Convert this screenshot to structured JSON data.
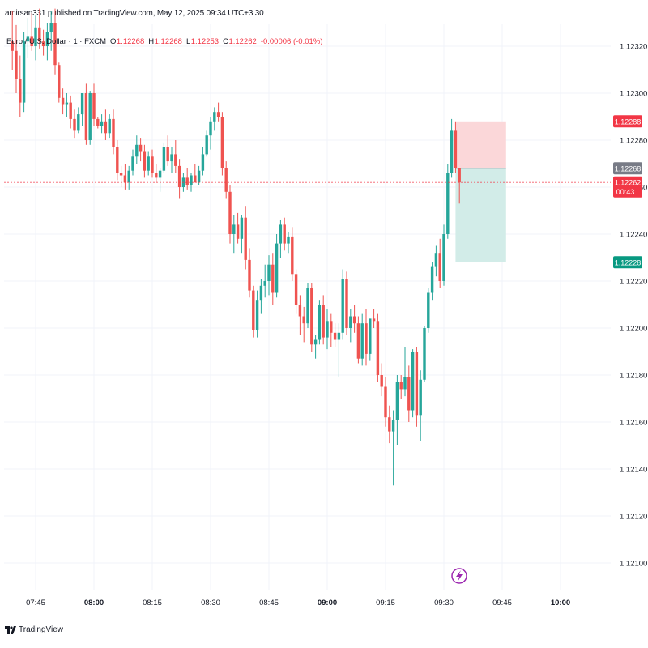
{
  "header": {
    "publisher": "amirsan331 published on TradingView.com, May 12, 2025 09:34 UTC+3:30"
  },
  "symbol": {
    "name": "Euro / U.S. Dollar · 1 · FXCM",
    "o_label": "O",
    "o_value": "1.12268",
    "h_label": "H",
    "h_value": "1.12268",
    "l_label": "L",
    "l_value": "1.12253",
    "c_label": "C",
    "c_value": "1.12262",
    "change": "-0.00006 (-0.01%)"
  },
  "footer": {
    "brand": "TradingView",
    "logo_icon": "tradingview-logo-icon"
  },
  "colors": {
    "up": "#26a69a",
    "down": "#ef5350",
    "grid": "#f0f3fa",
    "stop_zone": "#fbd7d9",
    "target_zone": "#d2ece8",
    "last_price": "#f23645",
    "target_badge": "#089981",
    "entry_badge": "#787b86"
  },
  "chart_data": {
    "type": "candlestick",
    "y_axis": {
      "range": [
        1.12092,
        1.12331
      ],
      "ticks": [
        "1.12320",
        "1.12300",
        "1.12280",
        "1.12260",
        "1.12240",
        "1.12220",
        "1.12200",
        "1.12180",
        "1.12160",
        "1.12140",
        "1.12120",
        "1.12100"
      ]
    },
    "x_axis": {
      "ticks": [
        "07:45",
        "08:00",
        "08:15",
        "08:30",
        "08:45",
        "09:00",
        "09:15",
        "09:30",
        "09:45",
        "10:00"
      ],
      "bold_ticks": [
        "08:00",
        "09:00",
        "10:00"
      ]
    },
    "grid": true,
    "candles": [
      {
        "t": "07:39",
        "o": 1.12322,
        "h": 1.12335,
        "l": 1.1231,
        "c": 1.12318
      },
      {
        "t": "07:40",
        "o": 1.12318,
        "h": 1.12329,
        "l": 1.123,
        "c": 1.12306
      },
      {
        "t": "07:41",
        "o": 1.12306,
        "h": 1.12316,
        "l": 1.1229,
        "c": 1.12296
      },
      {
        "t": "07:42",
        "o": 1.12296,
        "h": 1.12326,
        "l": 1.12292,
        "c": 1.12322
      },
      {
        "t": "07:43",
        "o": 1.12322,
        "h": 1.12332,
        "l": 1.12315,
        "c": 1.12324
      },
      {
        "t": "07:44",
        "o": 1.12324,
        "h": 1.12334,
        "l": 1.12318,
        "c": 1.1232
      },
      {
        "t": "07:45",
        "o": 1.1232,
        "h": 1.12333,
        "l": 1.12314,
        "c": 1.12328
      },
      {
        "t": "07:46",
        "o": 1.12328,
        "h": 1.12336,
        "l": 1.12319,
        "c": 1.12322
      },
      {
        "t": "07:47",
        "o": 1.12322,
        "h": 1.12327,
        "l": 1.12316,
        "c": 1.1232
      },
      {
        "t": "07:48",
        "o": 1.1232,
        "h": 1.1233,
        "l": 1.12314,
        "c": 1.12326
      },
      {
        "t": "07:49",
        "o": 1.12326,
        "h": 1.12335,
        "l": 1.12318,
        "c": 1.1233
      },
      {
        "t": "07:50",
        "o": 1.1233,
        "h": 1.12336,
        "l": 1.12308,
        "c": 1.12312
      },
      {
        "t": "07:51",
        "o": 1.12312,
        "h": 1.12313,
        "l": 1.12296,
        "c": 1.12298
      },
      {
        "t": "07:52",
        "o": 1.12298,
        "h": 1.12302,
        "l": 1.12291,
        "c": 1.12295
      },
      {
        "t": "07:53",
        "o": 1.12295,
        "h": 1.123,
        "l": 1.1229,
        "c": 1.12296
      },
      {
        "t": "07:54",
        "o": 1.12296,
        "h": 1.12299,
        "l": 1.12285,
        "c": 1.12289
      },
      {
        "t": "07:55",
        "o": 1.12289,
        "h": 1.12293,
        "l": 1.12281,
        "c": 1.12284
      },
      {
        "t": "07:56",
        "o": 1.12284,
        "h": 1.12294,
        "l": 1.12283,
        "c": 1.12291
      },
      {
        "t": "07:57",
        "o": 1.12291,
        "h": 1.123,
        "l": 1.12286,
        "c": 1.123
      },
      {
        "t": "07:58",
        "o": 1.123,
        "h": 1.12304,
        "l": 1.12278,
        "c": 1.1228
      },
      {
        "t": "07:59",
        "o": 1.1228,
        "h": 1.12301,
        "l": 1.12278,
        "c": 1.123
      },
      {
        "t": "08:00",
        "o": 1.123,
        "h": 1.12304,
        "l": 1.12286,
        "c": 1.12289
      },
      {
        "t": "08:01",
        "o": 1.12289,
        "h": 1.1229,
        "l": 1.12285,
        "c": 1.12286
      },
      {
        "t": "08:02",
        "o": 1.12286,
        "h": 1.12291,
        "l": 1.12283,
        "c": 1.12288
      },
      {
        "t": "08:03",
        "o": 1.12288,
        "h": 1.12293,
        "l": 1.1228,
        "c": 1.12283
      },
      {
        "t": "08:04",
        "o": 1.12283,
        "h": 1.12291,
        "l": 1.12281,
        "c": 1.12289
      },
      {
        "t": "08:05",
        "o": 1.12289,
        "h": 1.12293,
        "l": 1.12274,
        "c": 1.12277
      },
      {
        "t": "08:06",
        "o": 1.12277,
        "h": 1.1228,
        "l": 1.12263,
        "c": 1.12266
      },
      {
        "t": "08:07",
        "o": 1.12266,
        "h": 1.12269,
        "l": 1.1226,
        "c": 1.12265
      },
      {
        "t": "08:08",
        "o": 1.12265,
        "h": 1.1227,
        "l": 1.12259,
        "c": 1.12262
      },
      {
        "t": "08:09",
        "o": 1.12262,
        "h": 1.12269,
        "l": 1.12259,
        "c": 1.12267
      },
      {
        "t": "08:10",
        "o": 1.12267,
        "h": 1.12276,
        "l": 1.12265,
        "c": 1.12273
      },
      {
        "t": "08:11",
        "o": 1.12273,
        "h": 1.12282,
        "l": 1.1227,
        "c": 1.12278
      },
      {
        "t": "08:12",
        "o": 1.12278,
        "h": 1.12281,
        "l": 1.12271,
        "c": 1.12275
      },
      {
        "t": "08:13",
        "o": 1.12275,
        "h": 1.12278,
        "l": 1.12264,
        "c": 1.12267
      },
      {
        "t": "08:14",
        "o": 1.12267,
        "h": 1.12275,
        "l": 1.12265,
        "c": 1.12273
      },
      {
        "t": "08:15",
        "o": 1.12273,
        "h": 1.12276,
        "l": 1.12264,
        "c": 1.12266
      },
      {
        "t": "08:16",
        "o": 1.12266,
        "h": 1.1227,
        "l": 1.12262,
        "c": 1.12264
      },
      {
        "t": "08:17",
        "o": 1.12264,
        "h": 1.12268,
        "l": 1.12258,
        "c": 1.12267
      },
      {
        "t": "08:18",
        "o": 1.12267,
        "h": 1.12279,
        "l": 1.12266,
        "c": 1.12277
      },
      {
        "t": "08:19",
        "o": 1.12277,
        "h": 1.12282,
        "l": 1.12269,
        "c": 1.12271
      },
      {
        "t": "08:20",
        "o": 1.12271,
        "h": 1.12277,
        "l": 1.12266,
        "c": 1.12274
      },
      {
        "t": "08:21",
        "o": 1.12274,
        "h": 1.1228,
        "l": 1.12266,
        "c": 1.12269
      },
      {
        "t": "08:22",
        "o": 1.12269,
        "h": 1.12272,
        "l": 1.12255,
        "c": 1.1226
      },
      {
        "t": "08:23",
        "o": 1.1226,
        "h": 1.12266,
        "l": 1.12258,
        "c": 1.12264
      },
      {
        "t": "08:24",
        "o": 1.12264,
        "h": 1.12268,
        "l": 1.12259,
        "c": 1.12261
      },
      {
        "t": "08:25",
        "o": 1.12261,
        "h": 1.12266,
        "l": 1.12258,
        "c": 1.12265
      },
      {
        "t": "08:26",
        "o": 1.12265,
        "h": 1.1227,
        "l": 1.12262,
        "c": 1.12262
      },
      {
        "t": "08:27",
        "o": 1.12262,
        "h": 1.12269,
        "l": 1.12261,
        "c": 1.12267
      },
      {
        "t": "08:28",
        "o": 1.12267,
        "h": 1.12277,
        "l": 1.12265,
        "c": 1.12274
      },
      {
        "t": "08:29",
        "o": 1.12274,
        "h": 1.12284,
        "l": 1.12273,
        "c": 1.12282
      },
      {
        "t": "08:30",
        "o": 1.12282,
        "h": 1.1229,
        "l": 1.12276,
        "c": 1.12288
      },
      {
        "t": "08:31",
        "o": 1.12288,
        "h": 1.12294,
        "l": 1.12284,
        "c": 1.12292
      },
      {
        "t": "08:32",
        "o": 1.12292,
        "h": 1.12296,
        "l": 1.12288,
        "c": 1.1229
      },
      {
        "t": "08:33",
        "o": 1.1229,
        "h": 1.12292,
        "l": 1.12265,
        "c": 1.12268
      },
      {
        "t": "08:34",
        "o": 1.12268,
        "h": 1.12271,
        "l": 1.12255,
        "c": 1.12258
      },
      {
        "t": "08:35",
        "o": 1.12258,
        "h": 1.12261,
        "l": 1.12236,
        "c": 1.1224
      },
      {
        "t": "08:36",
        "o": 1.1224,
        "h": 1.12248,
        "l": 1.12232,
        "c": 1.12244
      },
      {
        "t": "08:37",
        "o": 1.12244,
        "h": 1.12249,
        "l": 1.12236,
        "c": 1.12238
      },
      {
        "t": "08:38",
        "o": 1.12238,
        "h": 1.12248,
        "l": 1.12232,
        "c": 1.12247
      },
      {
        "t": "08:39",
        "o": 1.12247,
        "h": 1.12252,
        "l": 1.12225,
        "c": 1.12229
      },
      {
        "t": "08:40",
        "o": 1.12229,
        "h": 1.12234,
        "l": 1.12213,
        "c": 1.12216
      },
      {
        "t": "08:41",
        "o": 1.12216,
        "h": 1.12218,
        "l": 1.12196,
        "c": 1.12199
      },
      {
        "t": "08:42",
        "o": 1.12199,
        "h": 1.12216,
        "l": 1.12196,
        "c": 1.12212
      },
      {
        "t": "08:43",
        "o": 1.12212,
        "h": 1.12221,
        "l": 1.12206,
        "c": 1.12218
      },
      {
        "t": "08:44",
        "o": 1.12218,
        "h": 1.12227,
        "l": 1.12213,
        "c": 1.1222
      },
      {
        "t": "08:45",
        "o": 1.1222,
        "h": 1.12231,
        "l": 1.12214,
        "c": 1.12227
      },
      {
        "t": "08:46",
        "o": 1.12227,
        "h": 1.12232,
        "l": 1.1221,
        "c": 1.12215
      },
      {
        "t": "08:47",
        "o": 1.12215,
        "h": 1.1224,
        "l": 1.12213,
        "c": 1.12236
      },
      {
        "t": "08:48",
        "o": 1.12236,
        "h": 1.12246,
        "l": 1.1223,
        "c": 1.12244
      },
      {
        "t": "08:49",
        "o": 1.12244,
        "h": 1.12247,
        "l": 1.12233,
        "c": 1.12236
      },
      {
        "t": "08:50",
        "o": 1.12236,
        "h": 1.12241,
        "l": 1.12232,
        "c": 1.12239
      },
      {
        "t": "08:51",
        "o": 1.12239,
        "h": 1.12243,
        "l": 1.1222,
        "c": 1.12223
      },
      {
        "t": "08:52",
        "o": 1.12223,
        "h": 1.12225,
        "l": 1.12206,
        "c": 1.1221
      },
      {
        "t": "08:53",
        "o": 1.1221,
        "h": 1.12214,
        "l": 1.12197,
        "c": 1.12205
      },
      {
        "t": "08:54",
        "o": 1.12205,
        "h": 1.12209,
        "l": 1.12194,
        "c": 1.12202
      },
      {
        "t": "08:55",
        "o": 1.12202,
        "h": 1.12219,
        "l": 1.122,
        "c": 1.12217
      },
      {
        "t": "08:56",
        "o": 1.12217,
        "h": 1.12219,
        "l": 1.1219,
        "c": 1.12193
      },
      {
        "t": "08:57",
        "o": 1.12193,
        "h": 1.12197,
        "l": 1.12187,
        "c": 1.12195
      },
      {
        "t": "08:58",
        "o": 1.12195,
        "h": 1.12212,
        "l": 1.12193,
        "c": 1.1221
      },
      {
        "t": "08:59",
        "o": 1.1221,
        "h": 1.12214,
        "l": 1.12193,
        "c": 1.12196
      },
      {
        "t": "09:00",
        "o": 1.12196,
        "h": 1.12208,
        "l": 1.12191,
        "c": 1.12203
      },
      {
        "t": "09:01",
        "o": 1.12203,
        "h": 1.12206,
        "l": 1.12192,
        "c": 1.12198
      },
      {
        "t": "09:02",
        "o": 1.12198,
        "h": 1.12202,
        "l": 1.12192,
        "c": 1.12195
      },
      {
        "t": "09:03",
        "o": 1.12195,
        "h": 1.12202,
        "l": 1.12179,
        "c": 1.12198
      },
      {
        "t": "09:04",
        "o": 1.12198,
        "h": 1.12225,
        "l": 1.12195,
        "c": 1.12221
      },
      {
        "t": "09:05",
        "o": 1.12221,
        "h": 1.12224,
        "l": 1.12197,
        "c": 1.122
      },
      {
        "t": "09:06",
        "o": 1.122,
        "h": 1.12208,
        "l": 1.12194,
        "c": 1.12205
      },
      {
        "t": "09:07",
        "o": 1.12205,
        "h": 1.1221,
        "l": 1.12198,
        "c": 1.12202
      },
      {
        "t": "09:08",
        "o": 1.12202,
        "h": 1.12205,
        "l": 1.12185,
        "c": 1.12187
      },
      {
        "t": "09:09",
        "o": 1.12187,
        "h": 1.12206,
        "l": 1.12184,
        "c": 1.12202
      },
      {
        "t": "09:10",
        "o": 1.12202,
        "h": 1.12208,
        "l": 1.12184,
        "c": 1.12189
      },
      {
        "t": "09:11",
        "o": 1.12189,
        "h": 1.12204,
        "l": 1.12186,
        "c": 1.12204
      },
      {
        "t": "09:12",
        "o": 1.12204,
        "h": 1.12208,
        "l": 1.122,
        "c": 1.12203
      },
      {
        "t": "09:13",
        "o": 1.12203,
        "h": 1.12206,
        "l": 1.12177,
        "c": 1.1218
      },
      {
        "t": "09:14",
        "o": 1.1218,
        "h": 1.12185,
        "l": 1.12171,
        "c": 1.12175
      },
      {
        "t": "09:15",
        "o": 1.12175,
        "h": 1.12179,
        "l": 1.12158,
        "c": 1.12162
      },
      {
        "t": "09:16",
        "o": 1.12162,
        "h": 1.12167,
        "l": 1.12151,
        "c": 1.12156
      },
      {
        "t": "09:17",
        "o": 1.12156,
        "h": 1.12165,
        "l": 1.12133,
        "c": 1.12161
      },
      {
        "t": "09:18",
        "o": 1.12161,
        "h": 1.1218,
        "l": 1.1215,
        "c": 1.12177
      },
      {
        "t": "09:19",
        "o": 1.12177,
        "h": 1.1218,
        "l": 1.1217,
        "c": 1.12174
      },
      {
        "t": "09:20",
        "o": 1.12174,
        "h": 1.12192,
        "l": 1.12171,
        "c": 1.12179
      },
      {
        "t": "09:21",
        "o": 1.12179,
        "h": 1.12184,
        "l": 1.1216,
        "c": 1.12165
      },
      {
        "t": "09:22",
        "o": 1.12165,
        "h": 1.12191,
        "l": 1.12162,
        "c": 1.1219
      },
      {
        "t": "09:23",
        "o": 1.1219,
        "h": 1.12192,
        "l": 1.12158,
        "c": 1.12163
      },
      {
        "t": "09:24",
        "o": 1.12163,
        "h": 1.12182,
        "l": 1.12152,
        "c": 1.12178
      },
      {
        "t": "09:25",
        "o": 1.12178,
        "h": 1.12201,
        "l": 1.12177,
        "c": 1.122
      },
      {
        "t": "09:26",
        "o": 1.122,
        "h": 1.12217,
        "l": 1.12198,
        "c": 1.12215
      },
      {
        "t": "09:27",
        "o": 1.12215,
        "h": 1.12228,
        "l": 1.12212,
        "c": 1.12226
      },
      {
        "t": "09:28",
        "o": 1.12226,
        "h": 1.12235,
        "l": 1.12222,
        "c": 1.12232
      },
      {
        "t": "09:29",
        "o": 1.12232,
        "h": 1.12238,
        "l": 1.12217,
        "c": 1.1222
      },
      {
        "t": "09:30",
        "o": 1.1222,
        "h": 1.12244,
        "l": 1.12218,
        "c": 1.1224
      },
      {
        "t": "09:31",
        "o": 1.1224,
        "h": 1.1227,
        "l": 1.12238,
        "c": 1.12266
      },
      {
        "t": "09:32",
        "o": 1.12266,
        "h": 1.12289,
        "l": 1.12264,
        "c": 1.12284
      },
      {
        "t": "09:33",
        "o": 1.12284,
        "h": 1.12288,
        "l": 1.12266,
        "c": 1.12268
      },
      {
        "t": "09:34",
        "o": 1.12268,
        "h": 1.12268,
        "l": 1.12253,
        "c": 1.12262
      }
    ],
    "position": {
      "stop_price": 1.12288,
      "stop_label": "1.12288",
      "entry_price": 1.12268,
      "entry_label": "1.12268",
      "target_price": 1.12228,
      "target_label": "1.12228",
      "start_time": "09:33",
      "end_time": "09:46"
    },
    "last_price": {
      "value": 1.12262,
      "label": "1.12262",
      "countdown": "00:43"
    }
  }
}
